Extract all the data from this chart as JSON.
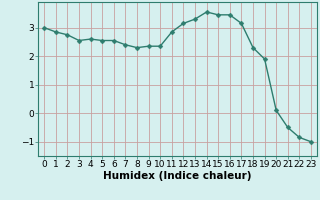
{
  "x": [
    0,
    1,
    2,
    3,
    4,
    5,
    6,
    7,
    8,
    9,
    10,
    11,
    12,
    13,
    14,
    15,
    16,
    17,
    18,
    19,
    20,
    21,
    22,
    23
  ],
  "y": [
    3.0,
    2.85,
    2.75,
    2.55,
    2.6,
    2.55,
    2.55,
    2.4,
    2.3,
    2.35,
    2.35,
    2.85,
    3.15,
    3.3,
    3.55,
    3.45,
    3.45,
    3.15,
    2.3,
    1.9,
    0.1,
    -0.5,
    -0.85,
    -1.0
  ],
  "line_color": "#2e7d6e",
  "marker": "D",
  "marker_size": 2.5,
  "line_width": 1.0,
  "bg_color": "#d6f0ef",
  "grid_color": "#c8a0a0",
  "xlabel": "Humidex (Indice chaleur)",
  "xlim": [
    -0.5,
    23.5
  ],
  "ylim": [
    -1.5,
    3.9
  ],
  "yticks": [
    -1,
    0,
    1,
    2,
    3
  ],
  "xtick_labels": [
    "0",
    "1",
    "2",
    "3",
    "4",
    "5",
    "6",
    "7",
    "8",
    "9",
    "10",
    "11",
    "12",
    "13",
    "14",
    "15",
    "16",
    "17",
    "18",
    "19",
    "20",
    "21",
    "22",
    "23"
  ],
  "xlabel_fontsize": 7.5,
  "tick_fontsize": 6.5
}
